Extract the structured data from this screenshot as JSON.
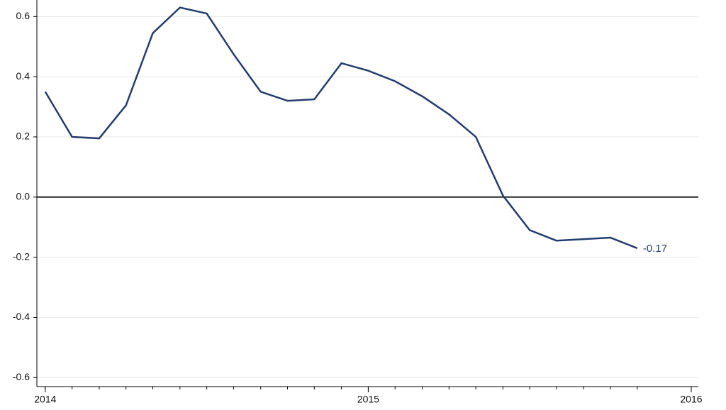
{
  "chart_data": {
    "type": "line",
    "x": [
      2014,
      2014.083,
      2014.167,
      2014.25,
      2014.333,
      2014.417,
      2014.5,
      2014.583,
      2014.667,
      2014.75,
      2014.833,
      2014.917,
      2015,
      2015.083,
      2015.167,
      2015.25,
      2015.333,
      2015.417,
      2015.5,
      2015.583,
      2015.667,
      2015.75,
      2015.833
    ],
    "values": [
      0.35,
      0.2,
      0.195,
      0.305,
      0.545,
      0.63,
      0.61,
      0.475,
      0.35,
      0.32,
      0.325,
      0.445,
      0.42,
      0.385,
      0.335,
      0.275,
      0.2,
      0.005,
      -0.11,
      -0.145,
      -0.14,
      -0.135,
      -0.17
    ],
    "color": "#233d6e",
    "xlim": [
      2013.974,
      2016.022
    ],
    "xticks": [
      2014,
      2015,
      2016
    ],
    "ylim": [
      -0.63,
      0.655
    ],
    "yticks": [
      0.6,
      0.4,
      0.2,
      {
        "value": 0,
        "label": "0.0"
      },
      -0.2,
      -0.4,
      -0.6
    ],
    "grid": true
  }
}
